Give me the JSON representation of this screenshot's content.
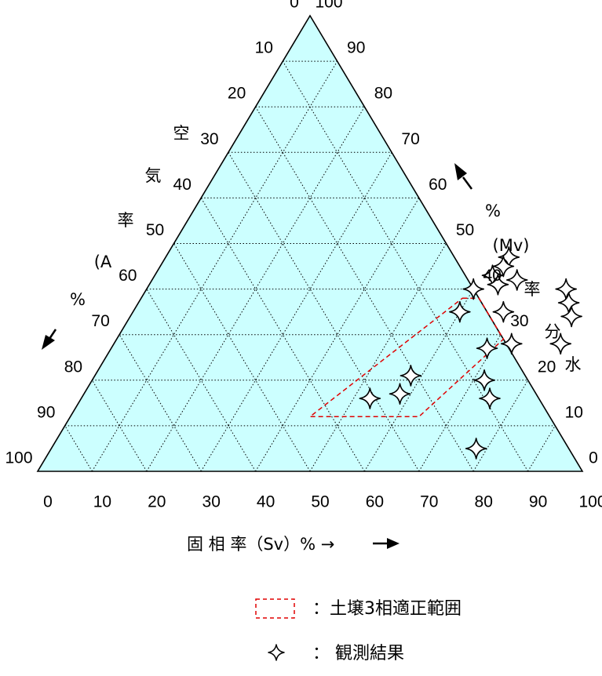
{
  "chart_data": {
    "type": "scatter",
    "subtype": "ternary",
    "colors": {
      "background": "#ccffff",
      "frame": "#000000",
      "grid": "#000000",
      "region": "#e00000",
      "marker_fill": "#ffffff",
      "marker_stroke": "#000000"
    },
    "grid": true,
    "grid_step": 10,
    "axes": {
      "solid": {
        "label": "固 相 率（Sv）% →",
        "ticks": [
          "0",
          "10",
          "20",
          "30",
          "40",
          "50",
          "60",
          "70",
          "80",
          "90",
          "100"
        ]
      },
      "liquid": {
        "label_chars": [
          "%",
          "(Mv)",
          "率",
          "分",
          "水"
        ],
        "ticks": [
          "0",
          "10",
          "20",
          "30",
          "40",
          "50",
          "60",
          "70",
          "80",
          "90",
          "100"
        ]
      },
      "air": {
        "label_chars": [
          "空",
          "気",
          "率",
          "(A",
          "%"
        ],
        "ticks": [
          "0",
          "10",
          "20",
          "30",
          "40",
          "50",
          "60",
          "70",
          "80",
          "90",
          "100"
        ]
      }
    },
    "region": {
      "name": "土壌3相適正範囲",
      "points": [
        {
          "solid": 59,
          "liquid": 38
        },
        {
          "solid": 62,
          "liquid": 38
        },
        {
          "solid": 71,
          "liquid": 29
        },
        {
          "solid": 64,
          "liquid": 12
        },
        {
          "solid": 44,
          "liquid": 12
        }
      ]
    },
    "series": [
      {
        "name": "観測結果",
        "marker": "four-point-star",
        "points": [
          {
            "solid": 63,
            "liquid": 47
          },
          {
            "solid": 63,
            "liquid": 45
          },
          {
            "solid": 62,
            "liquid": 43
          },
          {
            "solid": 67,
            "liquid": 42
          },
          {
            "solid": 64,
            "liquid": 41
          },
          {
            "solid": 60,
            "liquid": 40
          },
          {
            "solid": 68,
            "liquid": 35
          },
          {
            "solid": 77,
            "liquid": 40
          },
          {
            "solid": 79,
            "liquid": 37
          },
          {
            "solid": 81,
            "liquid": 34
          },
          {
            "solid": 60,
            "liquid": 35
          },
          {
            "solid": 73,
            "liquid": 28
          },
          {
            "solid": 82,
            "liquid": 28
          },
          {
            "solid": 69,
            "liquid": 27
          },
          {
            "solid": 72,
            "liquid": 20
          },
          {
            "solid": 58,
            "liquid": 21
          },
          {
            "solid": 58,
            "liquid": 17
          },
          {
            "solid": 53,
            "liquid": 16
          },
          {
            "solid": 75,
            "liquid": 16
          },
          {
            "solid": 78,
            "liquid": 5
          }
        ]
      }
    ],
    "legend": {
      "position": "bottom-center",
      "items": [
        {
          "symbol": "dashed-rect",
          "label": "：土壌3相適正範囲"
        },
        {
          "symbol": "four-point-star",
          "label": "：  観測結果"
        }
      ]
    }
  }
}
